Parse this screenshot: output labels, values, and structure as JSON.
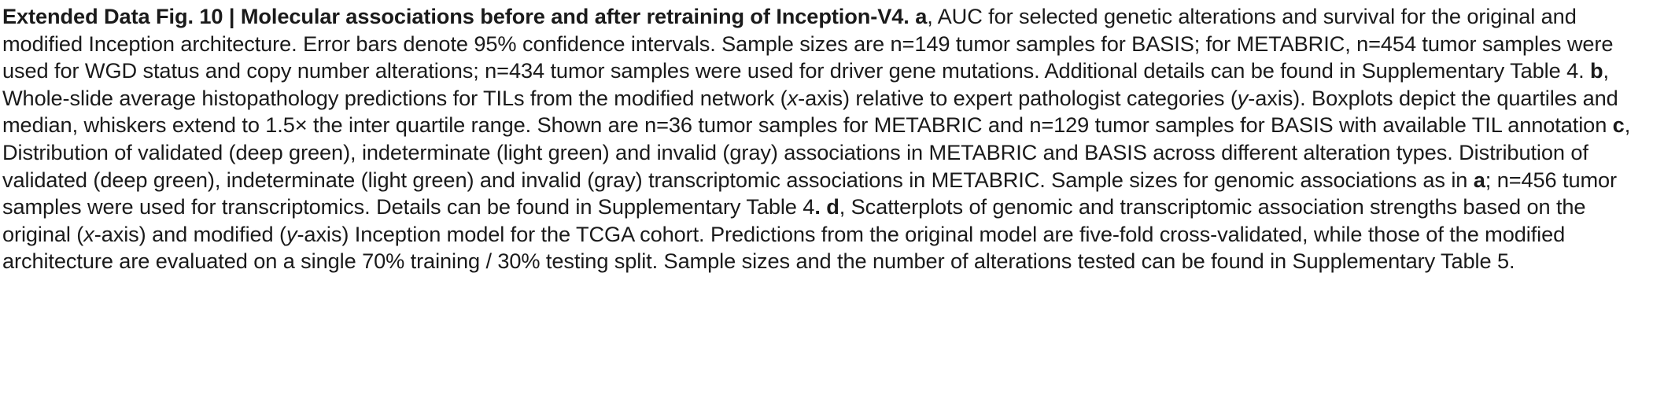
{
  "caption": {
    "label": "Extended Data Fig. 10 | Molecular associations before and after retraining of Inception-V4.",
    "panel_a": "a",
    "text_a": ", AUC for selected genetic alterations and survival for the original and modified Inception architecture. Error bars denote 95% confidence intervals. Sample sizes are n=149 tumor samples for BASIS; for METABRIC, n=454 tumor samples were used for WGD status and copy number alterations; n=434 tumor samples were used for driver gene mutations. Additional details can be found in Supplementary Table 4. ",
    "panel_b": "b",
    "text_b1": ", Whole-slide average histopathology predictions for TILs from the modified network (",
    "x_var_b": "x",
    "text_b2": "-axis) relative to expert pathologist categories (",
    "y_var_b": "y",
    "text_b3": "-axis). Boxplots depict the quartiles and median, whiskers extend to 1.5× the inter quartile range. Shown are n=36 tumor samples for METABRIC and n=129 tumor samples for BASIS with available TIL annotation ",
    "panel_c": "c",
    "text_c1": ", Distribution of validated (deep green), indeterminate (light green) and invalid (gray) associations in METABRIC and BASIS across different alteration types. Distribution of validated (deep green), indeterminate (light green) and invalid (gray) transcriptomic associations in METABRIC. Sample sizes for genomic associations as in ",
    "ref_a": "a",
    "text_c2": "; n=456 tumor samples were used for transcriptomics. Details can be found in Supplementary Table 4",
    "period_d": ". d",
    "text_d1": ", Scatterplots of genomic and transcriptomic association strengths based on the original (",
    "x_var_d": "x",
    "text_d2": "-axis) and modified (",
    "y_var_d": "y",
    "text_d3": "-axis) Inception model for the TCGA cohort. Predictions from the original model are five-fold cross-validated, while those of the modified architecture are evaluated on a single 70% training / 30% testing split. Sample sizes and the number of alterations tested can be found in Supplementary Table 5."
  }
}
